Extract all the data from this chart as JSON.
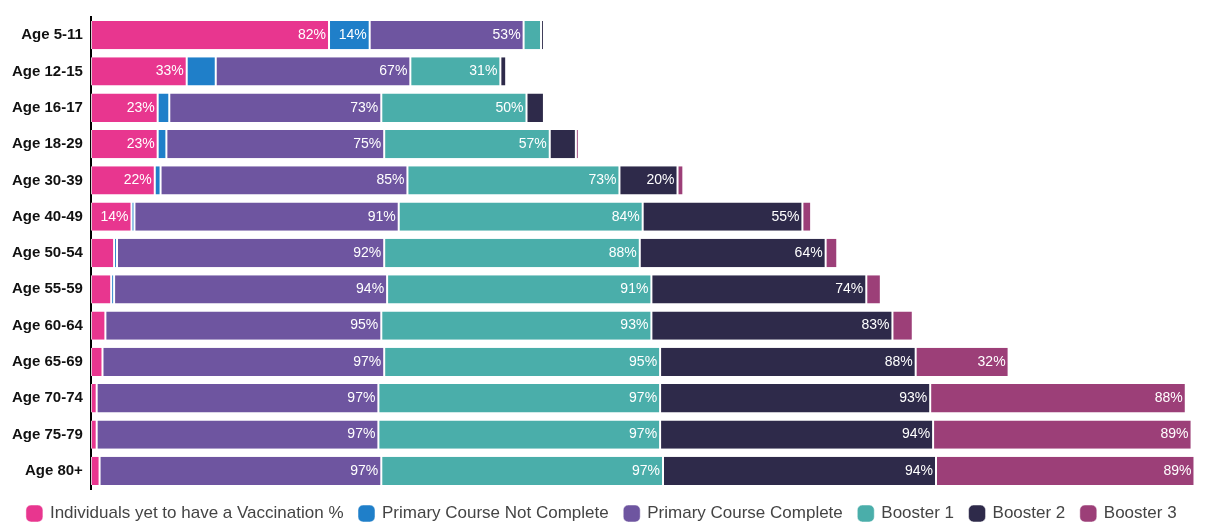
{
  "chart_data": {
    "type": "bar",
    "orientation": "horizontal",
    "stacked": true,
    "legend": "bottom",
    "categories": [
      "Age 5-11",
      "Age 12-15",
      "Age 16-17",
      "Age 18-29",
      "Age 30-39",
      "Age 40-49",
      "Age 50-54",
      "Age 55-59",
      "Age 60-64",
      "Age 65-69",
      "Age 70-74",
      "Age 75-79",
      "Age 80+"
    ],
    "series": [
      {
        "name": "Individuals yet to have a Vaccination %",
        "color": "#e8368f",
        "values": [
          82,
          33,
          23,
          23,
          22,
          14,
          8,
          7,
          5,
          4,
          2,
          2,
          3
        ],
        "value_labels": [
          "82%",
          "33%",
          "23%",
          "23%",
          "22%",
          "14%",
          null,
          null,
          null,
          null,
          null,
          null,
          null
        ]
      },
      {
        "name": "Primary Course Not Complete",
        "color": "#1f7fc9",
        "values": [
          14,
          10,
          4,
          3,
          2,
          1,
          1,
          1,
          0,
          0,
          0,
          0,
          0
        ],
        "value_labels": [
          "14%",
          null,
          null,
          null,
          null,
          null,
          null,
          null,
          null,
          null,
          null,
          null,
          null
        ]
      },
      {
        "name": "Primary Course Complete",
        "color": "#6e55a0",
        "values": [
          53,
          67,
          73,
          75,
          85,
          91,
          92,
          94,
          95,
          97,
          97,
          97,
          97
        ],
        "value_labels": [
          "53%",
          "67%",
          "73%",
          "75%",
          "85%",
          "91%",
          "92%",
          "94%",
          "95%",
          "97%",
          "97%",
          "97%",
          "97%"
        ]
      },
      {
        "name": "Booster 1",
        "color": "#4aaeaa",
        "values": [
          6,
          31,
          50,
          57,
          73,
          84,
          88,
          91,
          93,
          95,
          97,
          97,
          97
        ],
        "value_labels": [
          null,
          "31%",
          "50%",
          "57%",
          "73%",
          "84%",
          "88%",
          "91%",
          "93%",
          "95%",
          "97%",
          "97%",
          "97%"
        ]
      },
      {
        "name": "Booster 2",
        "color": "#2e2a4a",
        "values": [
          1,
          2,
          6,
          9,
          20,
          55,
          64,
          74,
          83,
          88,
          93,
          94,
          94
        ],
        "value_labels": [
          null,
          null,
          null,
          null,
          "20%",
          "55%",
          "64%",
          "74%",
          "83%",
          "88%",
          "93%",
          "94%",
          "94%"
        ]
      },
      {
        "name": "Booster 3",
        "color": "#9c3f78",
        "values": [
          0,
          0,
          0,
          1,
          2,
          3,
          4,
          5,
          7,
          32,
          88,
          89,
          89
        ],
        "value_labels": [
          null,
          null,
          null,
          null,
          null,
          null,
          null,
          null,
          null,
          "32%",
          "88%",
          "89%",
          "89%"
        ]
      }
    ]
  }
}
